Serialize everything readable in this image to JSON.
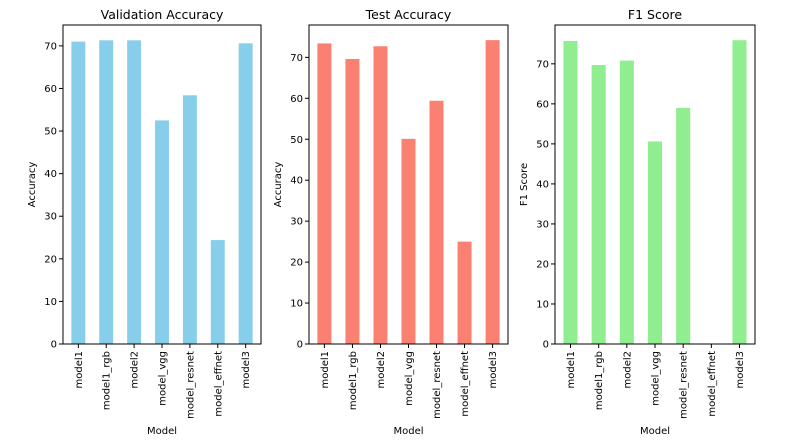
{
  "chart_data": [
    {
      "type": "bar",
      "title": "Validation Accuracy",
      "xlabel": "Model",
      "ylabel": "Accuracy",
      "categories": [
        "model1",
        "model1_rgb",
        "model2",
        "model_vgg",
        "model_resnet",
        "model_effnet",
        "model3"
      ],
      "values": [
        71.0,
        71.3,
        71.3,
        52.5,
        58.4,
        24.4,
        70.6
      ],
      "yticks": [
        0,
        10,
        20,
        30,
        40,
        50,
        60,
        70
      ],
      "ylim": [
        0,
        74.9
      ],
      "color": "#87ceeb",
      "grid": false,
      "legend": "none"
    },
    {
      "type": "bar",
      "title": "Test Accuracy",
      "xlabel": "Model",
      "ylabel": "Accuracy",
      "categories": [
        "model1",
        "model1_rgb",
        "model2",
        "model_vgg",
        "model_resnet",
        "model_effnet",
        "model3"
      ],
      "values": [
        73.4,
        69.6,
        72.7,
        50.1,
        59.4,
        25.0,
        74.2
      ],
      "yticks": [
        0,
        10,
        20,
        30,
        40,
        50,
        60,
        70
      ],
      "ylim": [
        0,
        77.9
      ],
      "color": "#fa8072",
      "grid": false,
      "legend": "none"
    },
    {
      "type": "bar",
      "title": "F1 Score",
      "xlabel": "Model",
      "ylabel": "F1 Score",
      "categories": [
        "model1",
        "model1_rgb",
        "model2",
        "model_vgg",
        "model_resnet",
        "model_effnet",
        "model3"
      ],
      "values": [
        75.7,
        69.7,
        70.8,
        50.6,
        59.0,
        0,
        75.9
      ],
      "yticks": [
        0,
        10,
        20,
        30,
        40,
        50,
        60,
        70
      ],
      "ylim": [
        0,
        79.7
      ],
      "color": "#90ee90",
      "grid": false,
      "legend": "none"
    }
  ]
}
